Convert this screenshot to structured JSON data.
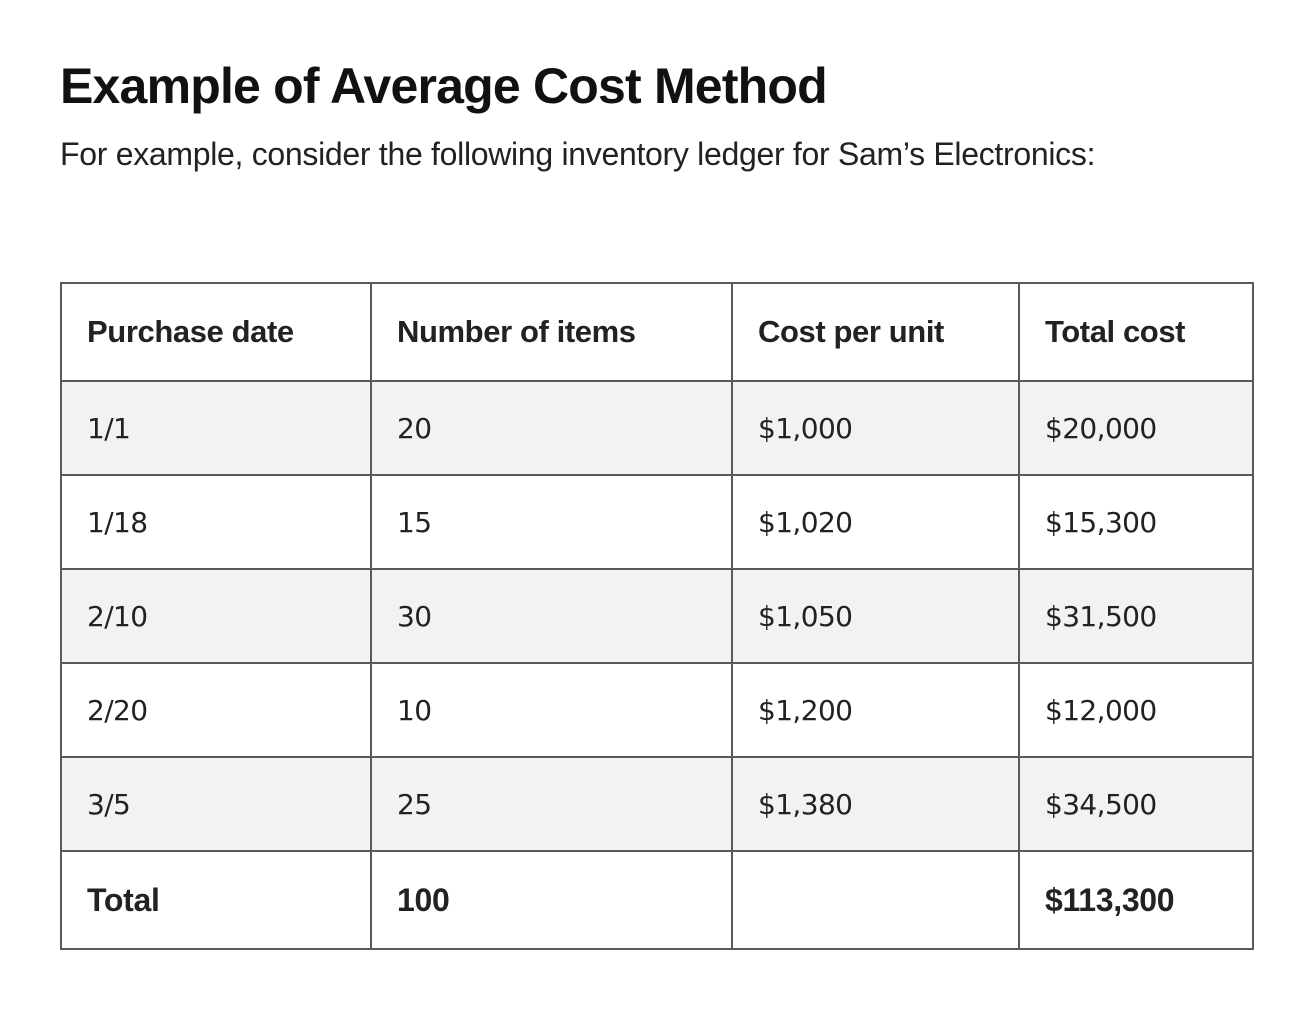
{
  "heading": {
    "title": "Example of Average Cost Method",
    "intro": "For example, consider the following inventory ledger for Sam’s Electronics:"
  },
  "table": {
    "headers": [
      "Purchase date",
      "Number of items",
      "Cost per unit",
      "Total cost"
    ],
    "rows": [
      [
        "1/1",
        "20",
        "$1,000",
        "$20,000"
      ],
      [
        "1/18",
        "15",
        "$1,020",
        "$15,300"
      ],
      [
        "2/10",
        "30",
        "$1,050",
        "$31,500"
      ],
      [
        "2/20",
        "10",
        "$1,200",
        "$12,000"
      ],
      [
        "3/5",
        "25",
        "$1,380",
        "$34,500"
      ]
    ],
    "total": [
      "Total",
      "100",
      "",
      "$113,300"
    ]
  }
}
